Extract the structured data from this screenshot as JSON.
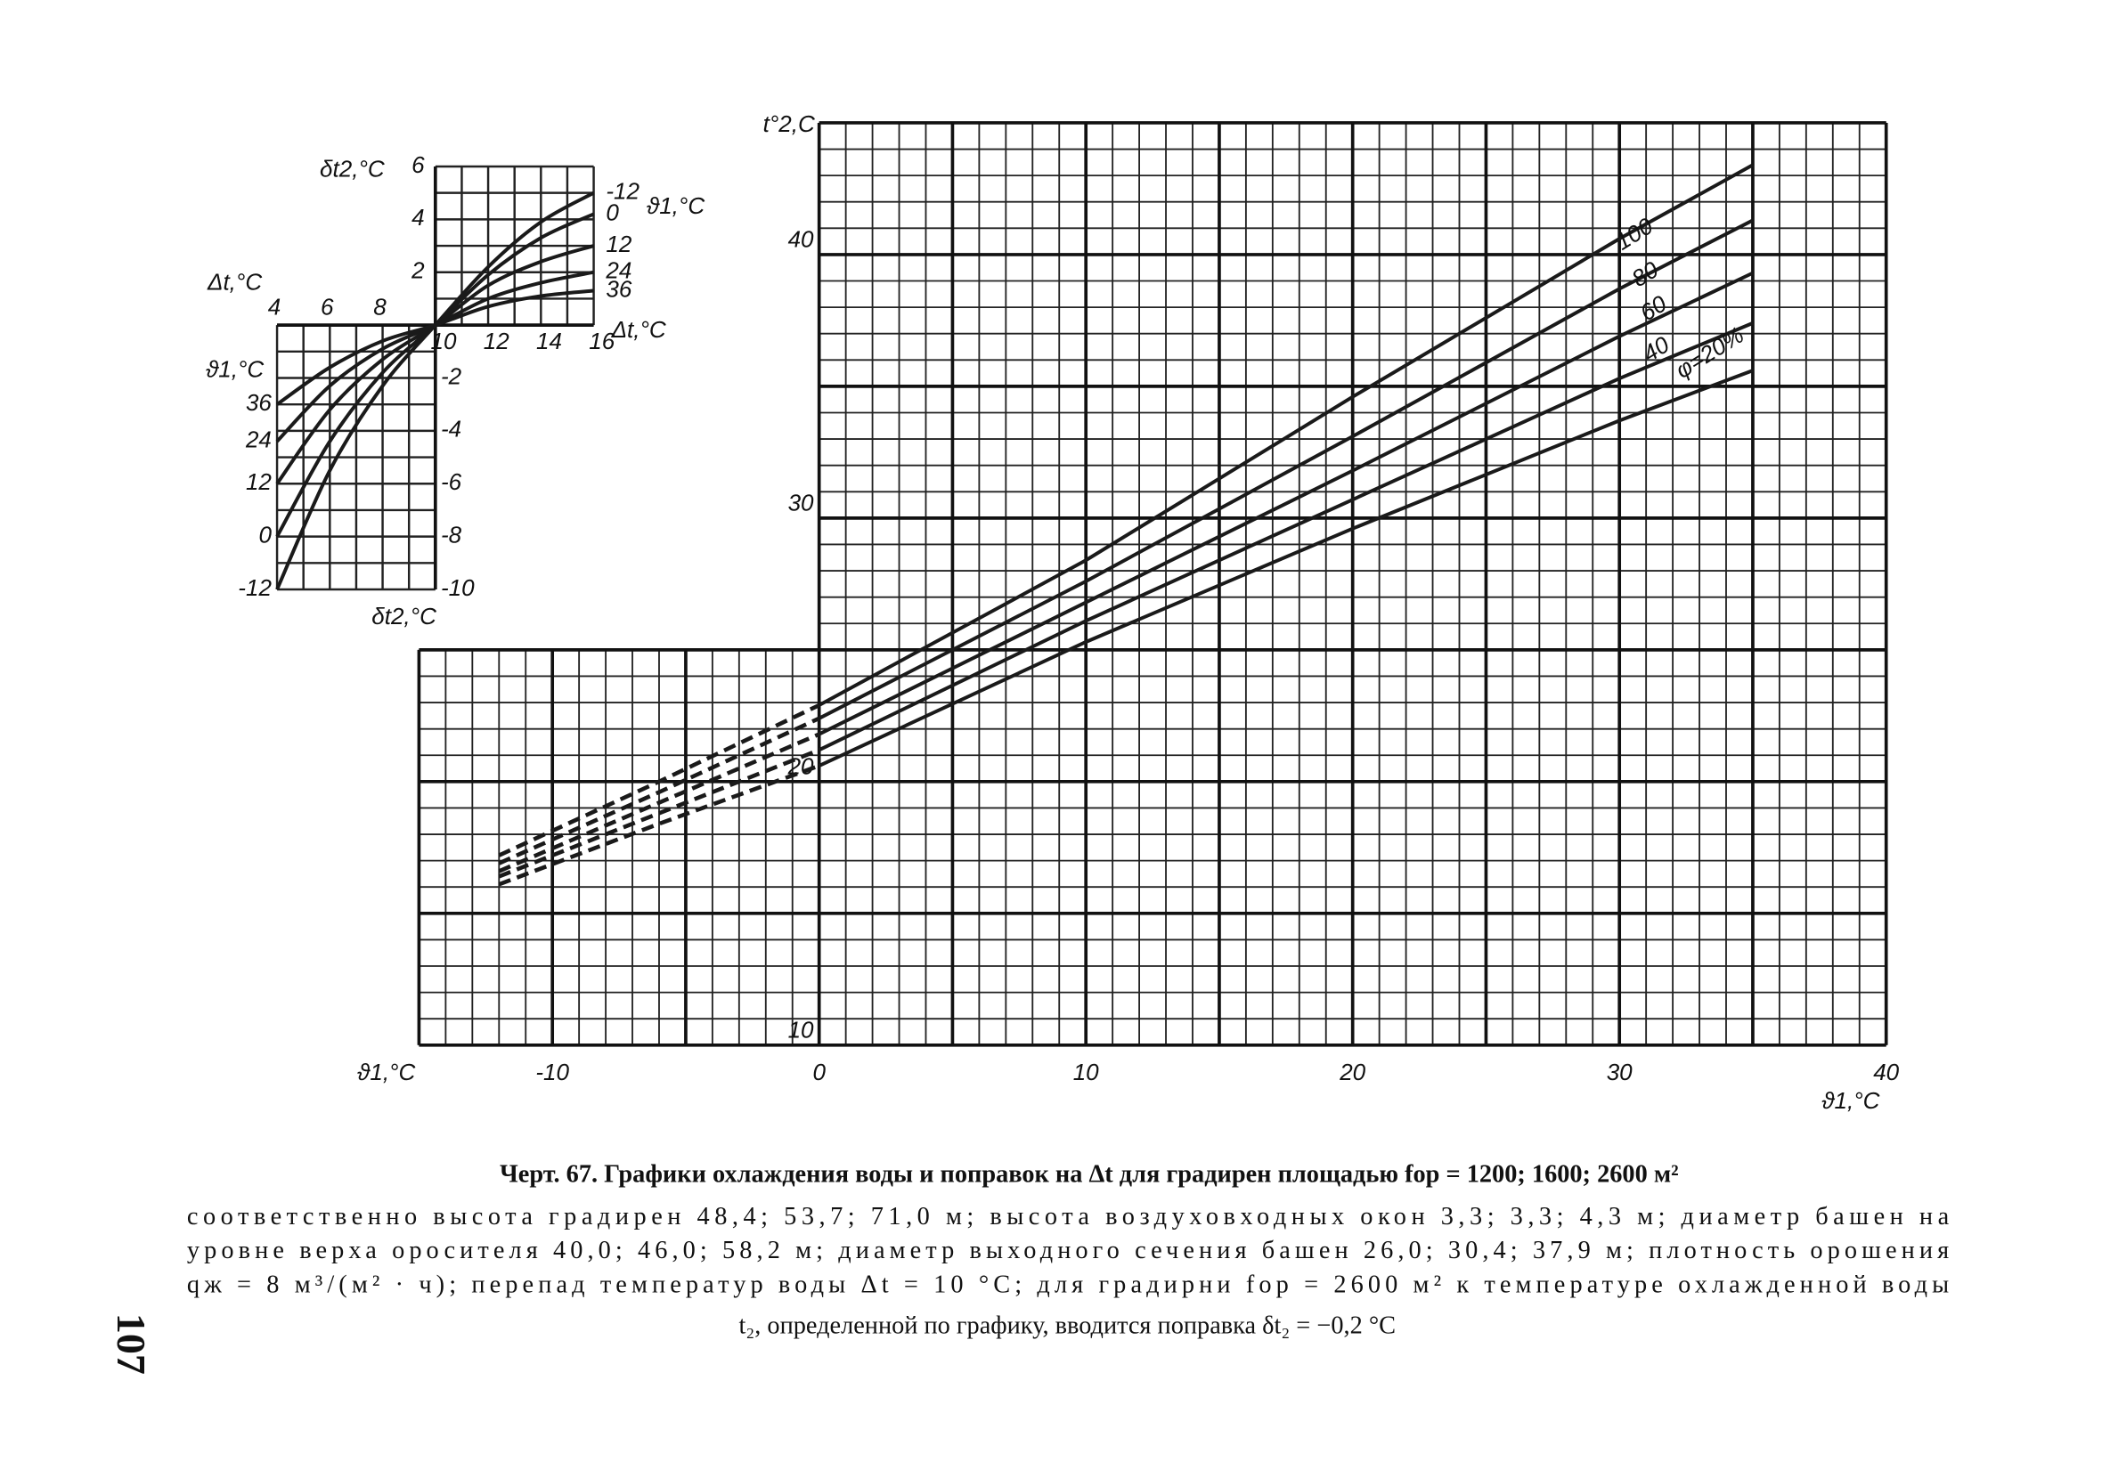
{
  "chart_data": [
    {
      "type": "line",
      "x_label": "ϑ1,°C",
      "y_label": "t°2,C",
      "x": [
        -12,
        -6,
        0,
        10,
        20,
        30,
        35
      ],
      "series": [
        {
          "name": "100",
          "values": [
            17.2,
            20.0,
            22.9,
            28.4,
            34.6,
            40.6,
            43.4
          ]
        },
        {
          "name": "80",
          "values": [
            16.9,
            19.6,
            22.4,
            27.6,
            33.1,
            38.7,
            41.3
          ]
        },
        {
          "name": "60",
          "values": [
            16.6,
            19.2,
            21.8,
            26.8,
            31.8,
            36.9,
            39.3
          ]
        },
        {
          "name": "40",
          "values": [
            16.4,
            18.8,
            21.2,
            26.1,
            30.7,
            35.3,
            37.4
          ]
        },
        {
          "name": "φ=20%",
          "values": [
            16.1,
            18.4,
            20.6,
            25.3,
            29.6,
            33.7,
            35.6
          ]
        }
      ],
      "color": "#1a1a1a",
      "dashed_below_x": 0,
      "xlim": [
        -15,
        40
      ],
      "ylim": [
        10,
        45
      ],
      "xticks": [
        -10,
        0,
        10,
        20,
        30,
        40
      ],
      "yticks": [
        10,
        20,
        30,
        40
      ],
      "xmajor_grid": [
        -15,
        -10,
        -5,
        0,
        5,
        10,
        15,
        20,
        25,
        30,
        35,
        40
      ],
      "ymajor_grid": [
        10,
        15,
        20,
        25,
        30,
        35,
        40,
        45
      ],
      "grid_step": 1,
      "grid_notch": [
        0,
        25
      ]
    },
    {
      "type": "line",
      "x_label": "Δt,°C",
      "y_label": "δt2,°C",
      "legend_title": "ϑ1,°C",
      "x": [
        4,
        6,
        8,
        10,
        12,
        14,
        16
      ],
      "series": [
        {
          "name": "-12",
          "values": [
            -10,
            -5.5,
            -2.3,
            0,
            2.2,
            3.9,
            5.0
          ]
        },
        {
          "name": "0",
          "values": [
            -8.0,
            -4.4,
            -1.8,
            0,
            1.9,
            3.3,
            4.2
          ]
        },
        {
          "name": "12",
          "values": [
            -6.0,
            -3.2,
            -1.3,
            0,
            1.5,
            2.4,
            3.0
          ]
        },
        {
          "name": "24",
          "values": [
            -4.4,
            -2.3,
            -0.9,
            0,
            1.0,
            1.6,
            2.0
          ]
        },
        {
          "name": "36",
          "values": [
            -3.0,
            -1.6,
            -0.6,
            0,
            0.7,
            1.1,
            1.3
          ]
        }
      ],
      "color": "#1a1a1a",
      "xlim": [
        4,
        16
      ],
      "ylim": [
        -10,
        6
      ],
      "xticks": [
        4,
        6,
        8,
        10,
        12,
        14,
        16
      ],
      "yticks": [
        6,
        4,
        2,
        -2,
        -4,
        -6,
        -8,
        -10
      ],
      "grid_step": 1,
      "quadrants": [
        [
          4,
          10,
          -10,
          0
        ],
        [
          10,
          16,
          0,
          6
        ]
      ]
    }
  ],
  "caption": {
    "title": "Черт. 67. Графики охлаждения воды и поправок на Δt для градирен площадью fор = 1200; 1600; 2600 м²",
    "lines": [
      "соответственно высота градирен 48,4; 53,7; 71,0 м; высота воздуховходных окон 3,3; 3,3; 4,3 м; диаметр башен на",
      "уровне верха оросителя 40,0; 46,0; 58,2 м; диаметр выходного сечения башен 26,0; 30,4; 37,9 м; плотность орошения",
      "qж = 8 м³/(м² · ч); перепад температур воды Δt = 10 °С; для градирни fор = 2600 м² к температуре охлажденной воды",
      "t₂, определенной по графику, вводится поправка δt₂ = −0,2 °С"
    ]
  },
  "page_number": "107"
}
